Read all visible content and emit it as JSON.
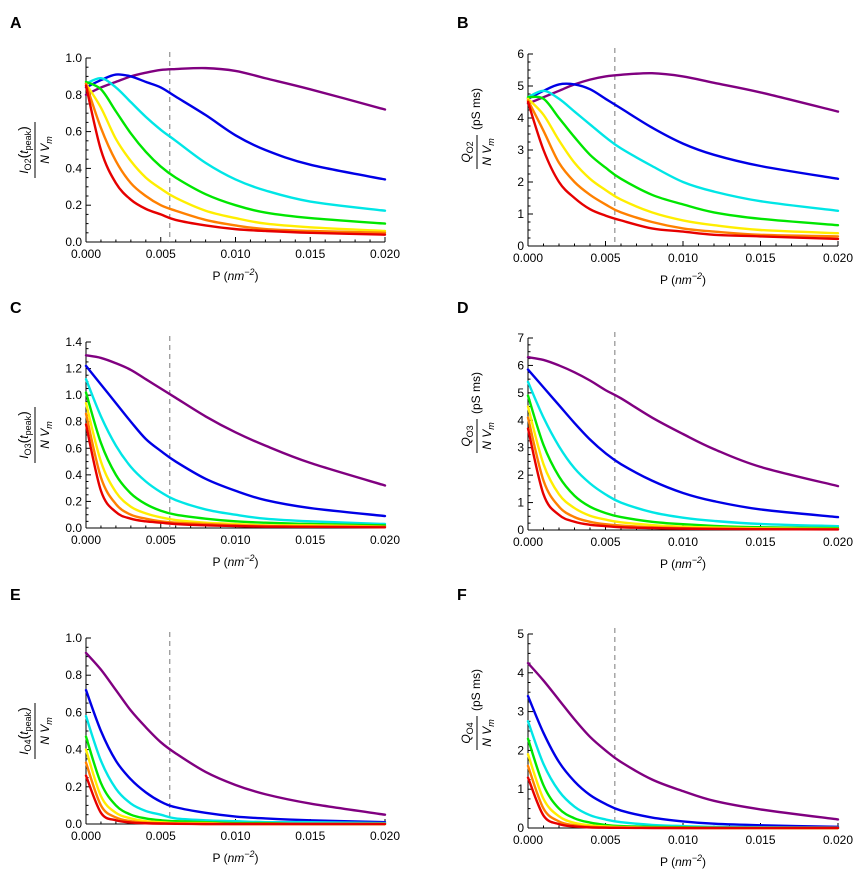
{
  "figure": {
    "colors": {
      "purple": "#800080",
      "blue": "#0000e6",
      "cyan": "#00e6e6",
      "green": "#00e600",
      "yellow": "#ffee00",
      "orange": "#ff8000",
      "red": "#e60000",
      "reference_line": "#999999"
    }
  },
  "chart_data": [
    {
      "panel": "A",
      "type": "line",
      "xlabel": "P",
      "xlabel_unit": "nm",
      "xlabel_unit_exp": "−2",
      "ylabel": {
        "symbol": "I",
        "sub": "O2",
        "arg_symbol": "t",
        "arg_sub": "peak",
        "denominator": "N V",
        "denominator_sub": "m",
        "unit": ""
      },
      "xlim": [
        0,
        0.02
      ],
      "ylim": [
        0,
        1.0
      ],
      "xticks": [
        "0.000",
        "0.005",
        "0.010",
        "0.015",
        "0.020"
      ],
      "yticks": [
        "0.0",
        "0.2",
        "0.4",
        "0.6",
        "0.8",
        "1.0"
      ],
      "reference_x": 0.0056,
      "x": [
        0,
        0.001,
        0.002,
        0.003,
        0.004,
        0.005,
        0.006,
        0.008,
        0.01,
        0.012,
        0.015,
        0.02
      ],
      "series": [
        {
          "color": "purple",
          "values": [
            0.8,
            0.84,
            0.87,
            0.9,
            0.92,
            0.935,
            0.94,
            0.945,
            0.93,
            0.89,
            0.83,
            0.72
          ]
        },
        {
          "color": "blue",
          "values": [
            0.84,
            0.88,
            0.91,
            0.9,
            0.87,
            0.84,
            0.79,
            0.69,
            0.58,
            0.5,
            0.42,
            0.34
          ]
        },
        {
          "color": "cyan",
          "values": [
            0.86,
            0.89,
            0.84,
            0.76,
            0.68,
            0.61,
            0.55,
            0.43,
            0.34,
            0.28,
            0.22,
            0.17
          ]
        },
        {
          "color": "green",
          "values": [
            0.87,
            0.83,
            0.71,
            0.59,
            0.49,
            0.41,
            0.35,
            0.26,
            0.2,
            0.16,
            0.13,
            0.1
          ]
        },
        {
          "color": "yellow",
          "values": [
            0.86,
            0.73,
            0.56,
            0.44,
            0.35,
            0.29,
            0.24,
            0.17,
            0.13,
            0.1,
            0.08,
            0.06
          ]
        },
        {
          "color": "orange",
          "values": [
            0.86,
            0.62,
            0.44,
            0.32,
            0.25,
            0.2,
            0.17,
            0.12,
            0.09,
            0.07,
            0.06,
            0.05
          ]
        },
        {
          "color": "red",
          "values": [
            0.85,
            0.5,
            0.32,
            0.23,
            0.18,
            0.15,
            0.12,
            0.09,
            0.07,
            0.06,
            0.05,
            0.04
          ]
        }
      ]
    },
    {
      "panel": "B",
      "type": "line",
      "xlabel": "P",
      "xlabel_unit": "nm",
      "xlabel_unit_exp": "−2",
      "ylabel": {
        "symbol": "Q",
        "sub": "O2",
        "arg_symbol": "",
        "arg_sub": "",
        "denominator": "N V",
        "denominator_sub": "m",
        "unit": "(pS ms)"
      },
      "xlim": [
        0,
        0.02
      ],
      "ylim": [
        0,
        6
      ],
      "xticks": [
        "0.000",
        "0.005",
        "0.010",
        "0.015",
        "0.020"
      ],
      "yticks": [
        "0",
        "1",
        "2",
        "3",
        "4",
        "5",
        "6"
      ],
      "reference_x": 0.0056,
      "x": [
        0,
        0.001,
        0.002,
        0.003,
        0.004,
        0.005,
        0.006,
        0.008,
        0.01,
        0.012,
        0.015,
        0.02
      ],
      "series": [
        {
          "color": "purple",
          "values": [
            4.45,
            4.65,
            4.85,
            5.05,
            5.2,
            5.3,
            5.35,
            5.4,
            5.3,
            5.1,
            4.8,
            4.2
          ]
        },
        {
          "color": "blue",
          "values": [
            4.6,
            4.85,
            5.05,
            5.05,
            4.9,
            4.6,
            4.3,
            3.7,
            3.2,
            2.85,
            2.5,
            2.1
          ]
        },
        {
          "color": "cyan",
          "values": [
            4.65,
            4.85,
            4.6,
            4.2,
            3.8,
            3.4,
            3.05,
            2.5,
            2.0,
            1.7,
            1.4,
            1.1
          ]
        },
        {
          "color": "green",
          "values": [
            4.65,
            4.6,
            4.0,
            3.4,
            2.85,
            2.45,
            2.1,
            1.6,
            1.3,
            1.05,
            0.85,
            0.65
          ]
        },
        {
          "color": "yellow",
          "values": [
            4.6,
            4.1,
            3.3,
            2.6,
            2.1,
            1.75,
            1.45,
            1.05,
            0.8,
            0.65,
            0.5,
            0.4
          ]
        },
        {
          "color": "orange",
          "values": [
            4.55,
            3.6,
            2.6,
            2.0,
            1.6,
            1.3,
            1.05,
            0.75,
            0.55,
            0.45,
            0.35,
            0.3
          ]
        },
        {
          "color": "red",
          "values": [
            4.5,
            3.0,
            2.0,
            1.5,
            1.15,
            0.95,
            0.8,
            0.55,
            0.45,
            0.35,
            0.3,
            0.22
          ]
        }
      ]
    },
    {
      "panel": "C",
      "type": "line",
      "xlabel": "P",
      "xlabel_unit": "nm",
      "xlabel_unit_exp": "−2",
      "ylabel": {
        "symbol": "I",
        "sub": "O3",
        "arg_symbol": "t",
        "arg_sub": "peak",
        "denominator": "N V",
        "denominator_sub": "m",
        "unit": ""
      },
      "xlim": [
        0,
        0.02
      ],
      "ylim": [
        0,
        1.4
      ],
      "xticks": [
        "0.000",
        "0.005",
        "0.010",
        "0.015",
        "0.020"
      ],
      "yticks": [
        "0.0",
        "0.2",
        "0.4",
        "0.6",
        "0.8",
        "1.0",
        "1.2",
        "1.4"
      ],
      "reference_x": 0.0056,
      "x": [
        0,
        0.001,
        0.002,
        0.003,
        0.004,
        0.005,
        0.006,
        0.008,
        0.01,
        0.012,
        0.015,
        0.02
      ],
      "series": [
        {
          "color": "purple",
          "values": [
            1.3,
            1.28,
            1.24,
            1.19,
            1.12,
            1.05,
            0.98,
            0.84,
            0.72,
            0.62,
            0.49,
            0.32
          ]
        },
        {
          "color": "blue",
          "values": [
            1.22,
            1.08,
            0.94,
            0.8,
            0.67,
            0.58,
            0.5,
            0.37,
            0.28,
            0.21,
            0.15,
            0.09
          ]
        },
        {
          "color": "cyan",
          "values": [
            1.12,
            0.84,
            0.62,
            0.46,
            0.35,
            0.27,
            0.21,
            0.14,
            0.1,
            0.07,
            0.05,
            0.03
          ]
        },
        {
          "color": "green",
          "values": [
            1.02,
            0.64,
            0.4,
            0.26,
            0.18,
            0.13,
            0.1,
            0.07,
            0.05,
            0.04,
            0.03,
            0.02
          ]
        },
        {
          "color": "yellow",
          "values": [
            0.94,
            0.5,
            0.27,
            0.16,
            0.11,
            0.08,
            0.06,
            0.04,
            0.03,
            0.02,
            0.02,
            0.01
          ]
        },
        {
          "color": "orange",
          "values": [
            0.86,
            0.38,
            0.18,
            0.1,
            0.07,
            0.05,
            0.04,
            0.03,
            0.02,
            0.015,
            0.01,
            0.01
          ]
        },
        {
          "color": "red",
          "values": [
            0.78,
            0.28,
            0.12,
            0.07,
            0.05,
            0.04,
            0.03,
            0.02,
            0.015,
            0.01,
            0.01,
            0.005
          ]
        }
      ]
    },
    {
      "panel": "D",
      "type": "line",
      "xlabel": "P",
      "xlabel_unit": "nm",
      "xlabel_unit_exp": "−2",
      "ylabel": {
        "symbol": "Q",
        "sub": "O3",
        "arg_symbol": "",
        "arg_sub": "",
        "denominator": "N V",
        "denominator_sub": "m",
        "unit": "(pS ms)"
      },
      "xlim": [
        0,
        0.02
      ],
      "ylim": [
        0,
        7
      ],
      "xticks": [
        "0.000",
        "0.005",
        "0.010",
        "0.015",
        "0.020"
      ],
      "yticks": [
        "0",
        "1",
        "2",
        "3",
        "4",
        "5",
        "6",
        "7"
      ],
      "reference_x": 0.0056,
      "x": [
        0,
        0.001,
        0.002,
        0.003,
        0.004,
        0.005,
        0.006,
        0.008,
        0.01,
        0.012,
        0.015,
        0.02
      ],
      "series": [
        {
          "color": "purple",
          "values": [
            6.3,
            6.2,
            6.0,
            5.75,
            5.45,
            5.1,
            4.8,
            4.1,
            3.5,
            2.95,
            2.3,
            1.6
          ]
        },
        {
          "color": "blue",
          "values": [
            5.85,
            5.2,
            4.55,
            3.9,
            3.3,
            2.8,
            2.4,
            1.8,
            1.35,
            1.05,
            0.75,
            0.47
          ]
        },
        {
          "color": "cyan",
          "values": [
            5.4,
            4.1,
            3.05,
            2.25,
            1.7,
            1.3,
            1.0,
            0.65,
            0.45,
            0.33,
            0.22,
            0.14
          ]
        },
        {
          "color": "green",
          "values": [
            4.9,
            3.1,
            1.95,
            1.25,
            0.85,
            0.62,
            0.47,
            0.3,
            0.21,
            0.15,
            0.1,
            0.07
          ]
        },
        {
          "color": "yellow",
          "values": [
            4.5,
            2.4,
            1.3,
            0.8,
            0.52,
            0.38,
            0.28,
            0.18,
            0.12,
            0.09,
            0.06,
            0.04
          ]
        },
        {
          "color": "orange",
          "values": [
            4.1,
            1.8,
            0.85,
            0.47,
            0.3,
            0.21,
            0.16,
            0.1,
            0.07,
            0.05,
            0.04,
            0.03
          ]
        },
        {
          "color": "red",
          "values": [
            3.7,
            1.3,
            0.55,
            0.3,
            0.19,
            0.14,
            0.1,
            0.07,
            0.05,
            0.04,
            0.03,
            0.02
          ]
        }
      ]
    },
    {
      "panel": "E",
      "type": "line",
      "xlabel": "P",
      "xlabel_unit": "nm",
      "xlabel_unit_exp": "−2",
      "ylabel": {
        "symbol": "I",
        "sub": "O4",
        "arg_symbol": "t",
        "arg_sub": "peak",
        "denominator": "N V",
        "denominator_sub": "m",
        "unit": ""
      },
      "xlim": [
        0,
        0.02
      ],
      "ylim": [
        0,
        1.0
      ],
      "xticks": [
        "0.000",
        "0.005",
        "0.010",
        "0.015",
        "0.020"
      ],
      "yticks": [
        "0.0",
        "0.2",
        "0.4",
        "0.6",
        "0.8",
        "1.0"
      ],
      "reference_x": 0.0056,
      "x": [
        0,
        0.001,
        0.002,
        0.003,
        0.004,
        0.005,
        0.006,
        0.008,
        0.01,
        0.012,
        0.015,
        0.02
      ],
      "series": [
        {
          "color": "purple",
          "values": [
            0.92,
            0.83,
            0.72,
            0.61,
            0.52,
            0.44,
            0.38,
            0.28,
            0.21,
            0.16,
            0.11,
            0.05
          ]
        },
        {
          "color": "blue",
          "values": [
            0.72,
            0.5,
            0.34,
            0.24,
            0.17,
            0.12,
            0.09,
            0.06,
            0.04,
            0.03,
            0.02,
            0.01
          ]
        },
        {
          "color": "cyan",
          "values": [
            0.58,
            0.34,
            0.19,
            0.11,
            0.07,
            0.05,
            0.03,
            0.02,
            0.015,
            0.01,
            0.01,
            0.005
          ]
        },
        {
          "color": "green",
          "values": [
            0.47,
            0.22,
            0.1,
            0.05,
            0.03,
            0.02,
            0.015,
            0.01,
            0.005,
            0.005,
            0.0,
            0.0
          ]
        },
        {
          "color": "yellow",
          "values": [
            0.4,
            0.15,
            0.06,
            0.03,
            0.015,
            0.01,
            0.005,
            0.005,
            0.0,
            0.0,
            0.0,
            0.0
          ]
        },
        {
          "color": "orange",
          "values": [
            0.33,
            0.1,
            0.035,
            0.015,
            0.007,
            0.004,
            0.003,
            0.0,
            0.0,
            0.0,
            0.0,
            0.0
          ]
        },
        {
          "color": "red",
          "values": [
            0.26,
            0.06,
            0.02,
            0.008,
            0.004,
            0.002,
            0.001,
            0.0,
            0.0,
            0.0,
            0.0,
            0.0
          ]
        }
      ]
    },
    {
      "panel": "F",
      "type": "line",
      "xlabel": "P",
      "xlabel_unit": "nm",
      "xlabel_unit_exp": "−2",
      "ylabel": {
        "symbol": "Q",
        "sub": "O4",
        "arg_symbol": "",
        "arg_sub": "",
        "denominator": "N V",
        "denominator_sub": "m",
        "unit": "(pS ms)"
      },
      "xlim": [
        0,
        0.02
      ],
      "ylim": [
        0,
        5
      ],
      "xticks": [
        "0.000",
        "0.005",
        "0.010",
        "0.015",
        "0.020"
      ],
      "yticks": [
        "0",
        "1",
        "2",
        "3",
        "4",
        "5"
      ],
      "reference_x": 0.0056,
      "x": [
        0,
        0.001,
        0.002,
        0.003,
        0.004,
        0.005,
        0.006,
        0.008,
        0.01,
        0.012,
        0.015,
        0.02
      ],
      "series": [
        {
          "color": "purple",
          "values": [
            4.25,
            3.8,
            3.3,
            2.8,
            2.35,
            2.0,
            1.7,
            1.25,
            0.95,
            0.7,
            0.48,
            0.22
          ]
        },
        {
          "color": "blue",
          "values": [
            3.4,
            2.45,
            1.7,
            1.2,
            0.85,
            0.62,
            0.45,
            0.27,
            0.17,
            0.11,
            0.07,
            0.03
          ]
        },
        {
          "color": "cyan",
          "values": [
            2.75,
            1.65,
            0.95,
            0.55,
            0.33,
            0.22,
            0.15,
            0.08,
            0.05,
            0.03,
            0.02,
            0.01
          ]
        },
        {
          "color": "green",
          "values": [
            2.3,
            1.1,
            0.5,
            0.25,
            0.14,
            0.08,
            0.05,
            0.03,
            0.02,
            0.01,
            0.005,
            0.0
          ]
        },
        {
          "color": "yellow",
          "values": [
            1.9,
            0.75,
            0.3,
            0.13,
            0.07,
            0.04,
            0.025,
            0.01,
            0.005,
            0.0,
            0.0,
            0.0
          ]
        },
        {
          "color": "orange",
          "values": [
            1.6,
            0.5,
            0.17,
            0.07,
            0.03,
            0.015,
            0.01,
            0.005,
            0.0,
            0.0,
            0.0,
            0.0
          ]
        },
        {
          "color": "red",
          "values": [
            1.3,
            0.32,
            0.1,
            0.04,
            0.015,
            0.007,
            0.004,
            0.0,
            0.0,
            0.0,
            0.0,
            0.0
          ]
        }
      ]
    }
  ]
}
